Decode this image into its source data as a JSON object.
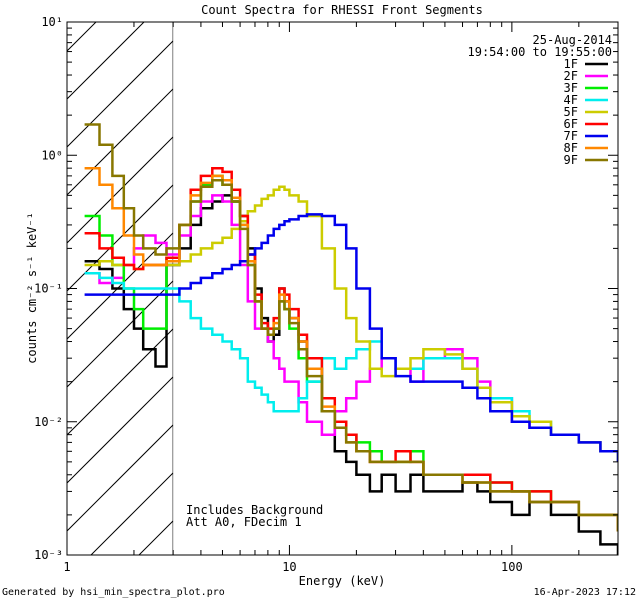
{
  "footer": {
    "left": "Generated by hsi_min_spectra_plot.pro",
    "right": "16-Apr-2023 17:12"
  },
  "chart_data": {
    "type": "line",
    "title": "Count Spectra for RHESSI Front Segments",
    "xlabel": "Energy (keV)",
    "ylabel": "counts cm⁻² s⁻¹ keV⁻¹",
    "x_scale": "log",
    "y_scale": "log",
    "xlim": [
      1,
      300
    ],
    "ylim": [
      0.001,
      10
    ],
    "x_major_ticks": [
      1,
      10,
      100
    ],
    "x_tick_labels": [
      "1",
      "10",
      "100"
    ],
    "y_major_ticks": [
      0.001,
      0.01,
      0.1,
      1,
      10
    ],
    "y_tick_labels": [
      "10⁻³",
      "10⁻²",
      "10⁻¹",
      "10⁰",
      "10¹"
    ],
    "hatched_region_xmax": 3,
    "date": "25-Aug-2014",
    "time_range": "19:54:00 to 19:55:00",
    "notes": [
      "Includes Background",
      "Att A0, FDecim 1"
    ],
    "series": [
      {
        "name": "1F",
        "color": "#000000",
        "x": [
          1.2,
          1.4,
          1.6,
          1.8,
          2.0,
          2.2,
          2.5,
          2.8,
          3.2,
          3.6,
          4.0,
          4.5,
          5.0,
          5.5,
          6.0,
          6.5,
          7.0,
          7.5,
          8.0,
          8.5,
          9.0,
          9.5,
          10,
          11,
          12,
          14,
          16,
          18,
          20,
          23,
          26,
          30,
          35,
          40,
          50,
          60,
          70,
          80,
          100,
          120,
          150,
          200,
          250,
          300
        ],
        "y": [
          0.16,
          0.14,
          0.1,
          0.07,
          0.05,
          0.035,
          0.026,
          0.15,
          0.2,
          0.3,
          0.4,
          0.45,
          0.5,
          0.45,
          0.35,
          0.2,
          0.1,
          0.06,
          0.04,
          0.045,
          0.1,
          0.08,
          0.06,
          0.04,
          0.025,
          0.012,
          0.006,
          0.005,
          0.004,
          0.003,
          0.004,
          0.003,
          0.004,
          0.003,
          0.003,
          0.0035,
          0.003,
          0.0025,
          0.002,
          0.0025,
          0.002,
          0.0015,
          0.0012,
          0.001
        ]
      },
      {
        "name": "2F",
        "color": "#ff00ff",
        "x": [
          1.2,
          1.4,
          1.6,
          1.8,
          2.0,
          2.2,
          2.5,
          2.8,
          3.2,
          3.6,
          4.0,
          4.5,
          5.0,
          5.5,
          6.0,
          6.5,
          7.0,
          7.5,
          8.0,
          8.5,
          9.0,
          9.5,
          10,
          11,
          12,
          14,
          16,
          18,
          20,
          23,
          26,
          30,
          35,
          40,
          50,
          60,
          70,
          80,
          100,
          120,
          150,
          200,
          250,
          300
        ],
        "y": [
          0.13,
          0.11,
          0.12,
          0.15,
          0.2,
          0.25,
          0.22,
          0.18,
          0.25,
          0.35,
          0.45,
          0.5,
          0.45,
          0.3,
          0.15,
          0.08,
          0.05,
          0.05,
          0.04,
          0.03,
          0.025,
          0.02,
          0.02,
          0.014,
          0.01,
          0.008,
          0.012,
          0.015,
          0.02,
          0.025,
          0.03,
          0.025,
          0.02,
          0.03,
          0.035,
          0.03,
          0.02,
          0.015,
          0.01,
          0.009,
          0.008,
          0.007,
          0.006,
          0.005
        ]
      },
      {
        "name": "3F",
        "color": "#00ee00",
        "x": [
          1.2,
          1.4,
          1.6,
          1.8,
          2.0,
          2.2,
          2.5,
          2.8,
          3.2,
          3.6,
          4.0,
          4.5,
          5.0,
          5.5,
          6.0,
          6.5,
          7.0,
          7.5,
          8.0,
          8.5,
          9.0,
          9.5,
          10,
          11,
          12,
          14,
          16,
          18,
          20,
          23,
          26,
          30,
          35,
          40,
          50,
          60,
          70,
          80,
          100,
          120,
          150,
          200,
          250,
          300
        ],
        "y": [
          0.35,
          0.25,
          0.15,
          0.1,
          0.07,
          0.05,
          0.05,
          0.17,
          0.3,
          0.45,
          0.6,
          0.7,
          0.6,
          0.45,
          0.3,
          0.15,
          0.08,
          0.05,
          0.045,
          0.05,
          0.08,
          0.07,
          0.05,
          0.03,
          0.02,
          0.012,
          0.01,
          0.008,
          0.007,
          0.006,
          0.005,
          0.005,
          0.006,
          0.004,
          0.004,
          0.004,
          0.004,
          0.0035,
          0.003,
          0.003,
          0.0025,
          0.002,
          0.002,
          0.0015
        ]
      },
      {
        "name": "4F",
        "color": "#00eeee",
        "x": [
          1.2,
          1.4,
          1.6,
          1.8,
          2.0,
          2.2,
          2.5,
          2.8,
          3.2,
          3.6,
          4.0,
          4.5,
          5.0,
          5.5,
          6.0,
          6.5,
          7.0,
          7.5,
          8.0,
          8.5,
          9.0,
          9.5,
          10,
          11,
          12,
          14,
          16,
          18,
          20,
          23,
          26,
          30,
          35,
          40,
          50,
          60,
          70,
          80,
          100,
          120,
          150,
          200,
          250,
          300
        ],
        "y": [
          0.13,
          0.12,
          0.11,
          0.1,
          0.1,
          0.1,
          0.1,
          0.1,
          0.08,
          0.06,
          0.05,
          0.045,
          0.04,
          0.035,
          0.03,
          0.02,
          0.018,
          0.016,
          0.014,
          0.012,
          0.012,
          0.012,
          0.012,
          0.015,
          0.02,
          0.03,
          0.025,
          0.03,
          0.035,
          0.04,
          0.03,
          0.025,
          0.025,
          0.03,
          0.03,
          0.025,
          0.018,
          0.015,
          0.012,
          0.01,
          0.008,
          0.007,
          0.006,
          0.005
        ]
      },
      {
        "name": "5F",
        "color": "#cccc00",
        "x": [
          1.2,
          1.4,
          1.6,
          1.8,
          2.0,
          2.2,
          2.5,
          2.8,
          3.2,
          3.6,
          4.0,
          4.5,
          5.0,
          5.5,
          6.0,
          6.5,
          7.0,
          7.5,
          8.0,
          8.5,
          9.0,
          9.5,
          10,
          11,
          12,
          14,
          16,
          18,
          20,
          23,
          26,
          30,
          35,
          40,
          50,
          60,
          70,
          80,
          100,
          120,
          150,
          200,
          250,
          300
        ],
        "y": [
          0.15,
          0.16,
          0.15,
          0.15,
          0.14,
          0.15,
          0.15,
          0.15,
          0.16,
          0.18,
          0.2,
          0.22,
          0.24,
          0.28,
          0.32,
          0.38,
          0.42,
          0.47,
          0.5,
          0.55,
          0.58,
          0.55,
          0.5,
          0.45,
          0.35,
          0.2,
          0.1,
          0.06,
          0.04,
          0.025,
          0.022,
          0.025,
          0.03,
          0.035,
          0.032,
          0.025,
          0.018,
          0.014,
          0.011,
          0.01,
          0.008,
          0.007,
          0.006,
          0.005
        ]
      },
      {
        "name": "6F",
        "color": "#ff0000",
        "x": [
          1.2,
          1.4,
          1.6,
          1.8,
          2.0,
          2.2,
          2.5,
          2.8,
          3.2,
          3.6,
          4.0,
          4.5,
          5.0,
          5.5,
          6.0,
          6.5,
          7.0,
          7.5,
          8.0,
          8.5,
          9.0,
          9.5,
          10,
          11,
          12,
          14,
          16,
          18,
          20,
          23,
          26,
          30,
          35,
          40,
          50,
          60,
          70,
          80,
          100,
          120,
          150,
          200,
          250,
          300
        ],
        "y": [
          0.26,
          0.2,
          0.17,
          0.15,
          0.14,
          0.15,
          0.15,
          0.17,
          0.3,
          0.55,
          0.7,
          0.8,
          0.75,
          0.55,
          0.35,
          0.18,
          0.09,
          0.055,
          0.05,
          0.06,
          0.1,
          0.09,
          0.07,
          0.045,
          0.03,
          0.015,
          0.01,
          0.008,
          0.006,
          0.005,
          0.005,
          0.006,
          0.005,
          0.004,
          0.004,
          0.004,
          0.004,
          0.0035,
          0.003,
          0.003,
          0.0025,
          0.002,
          0.002,
          0.0015
        ]
      },
      {
        "name": "7F",
        "color": "#0000ee",
        "x": [
          1.2,
          1.4,
          1.6,
          1.8,
          2.0,
          2.2,
          2.5,
          2.8,
          3.2,
          3.6,
          4.0,
          4.5,
          5.0,
          5.5,
          6.0,
          6.5,
          7.0,
          7.5,
          8.0,
          8.5,
          9.0,
          9.5,
          10,
          11,
          12,
          14,
          16,
          18,
          20,
          23,
          26,
          30,
          35,
          40,
          50,
          60,
          70,
          80,
          100,
          120,
          150,
          200,
          250,
          300
        ],
        "y": [
          0.09,
          0.09,
          0.09,
          0.09,
          0.09,
          0.09,
          0.09,
          0.09,
          0.1,
          0.11,
          0.12,
          0.13,
          0.14,
          0.15,
          0.16,
          0.18,
          0.2,
          0.22,
          0.25,
          0.28,
          0.3,
          0.32,
          0.33,
          0.35,
          0.36,
          0.35,
          0.3,
          0.2,
          0.1,
          0.05,
          0.03,
          0.022,
          0.02,
          0.02,
          0.02,
          0.018,
          0.015,
          0.012,
          0.01,
          0.009,
          0.008,
          0.007,
          0.006,
          0.005
        ]
      },
      {
        "name": "8F",
        "color": "#ff8800",
        "x": [
          1.2,
          1.4,
          1.6,
          1.8,
          2.0,
          2.2,
          2.5,
          2.8,
          3.2,
          3.6,
          4.0,
          4.5,
          5.0,
          5.5,
          6.0,
          6.5,
          7.0,
          7.5,
          8.0,
          8.5,
          9.0,
          9.5,
          10,
          11,
          12,
          14,
          16,
          18,
          20,
          23,
          26,
          30,
          35,
          40,
          50,
          60,
          70,
          80,
          100,
          120,
          150,
          200,
          250,
          300
        ],
        "y": [
          0.8,
          0.6,
          0.4,
          0.25,
          0.18,
          0.15,
          0.15,
          0.16,
          0.3,
          0.5,
          0.62,
          0.7,
          0.65,
          0.48,
          0.3,
          0.16,
          0.08,
          0.05,
          0.045,
          0.055,
          0.09,
          0.08,
          0.06,
          0.04,
          0.025,
          0.013,
          0.009,
          0.007,
          0.006,
          0.005,
          0.005,
          0.005,
          0.005,
          0.004,
          0.004,
          0.0035,
          0.0035,
          0.003,
          0.003,
          0.0025,
          0.0025,
          0.002,
          0.002,
          0.0015
        ]
      },
      {
        "name": "9F",
        "color": "#887700",
        "x": [
          1.2,
          1.4,
          1.6,
          1.8,
          2.0,
          2.2,
          2.5,
          2.8,
          3.2,
          3.6,
          4.0,
          4.5,
          5.0,
          5.5,
          6.0,
          6.5,
          7.0,
          7.5,
          8.0,
          8.5,
          9.0,
          9.5,
          10,
          11,
          12,
          14,
          16,
          18,
          20,
          23,
          26,
          30,
          35,
          40,
          50,
          60,
          70,
          80,
          100,
          120,
          150,
          200,
          250,
          300
        ],
        "y": [
          1.7,
          1.2,
          0.7,
          0.4,
          0.25,
          0.2,
          0.18,
          0.2,
          0.3,
          0.45,
          0.58,
          0.65,
          0.6,
          0.45,
          0.28,
          0.15,
          0.08,
          0.05,
          0.045,
          0.05,
          0.08,
          0.07,
          0.055,
          0.035,
          0.022,
          0.012,
          0.009,
          0.007,
          0.006,
          0.005,
          0.005,
          0.005,
          0.005,
          0.004,
          0.004,
          0.0035,
          0.0035,
          0.003,
          0.003,
          0.0025,
          0.0025,
          0.002,
          0.002,
          0.0015
        ]
      }
    ]
  }
}
